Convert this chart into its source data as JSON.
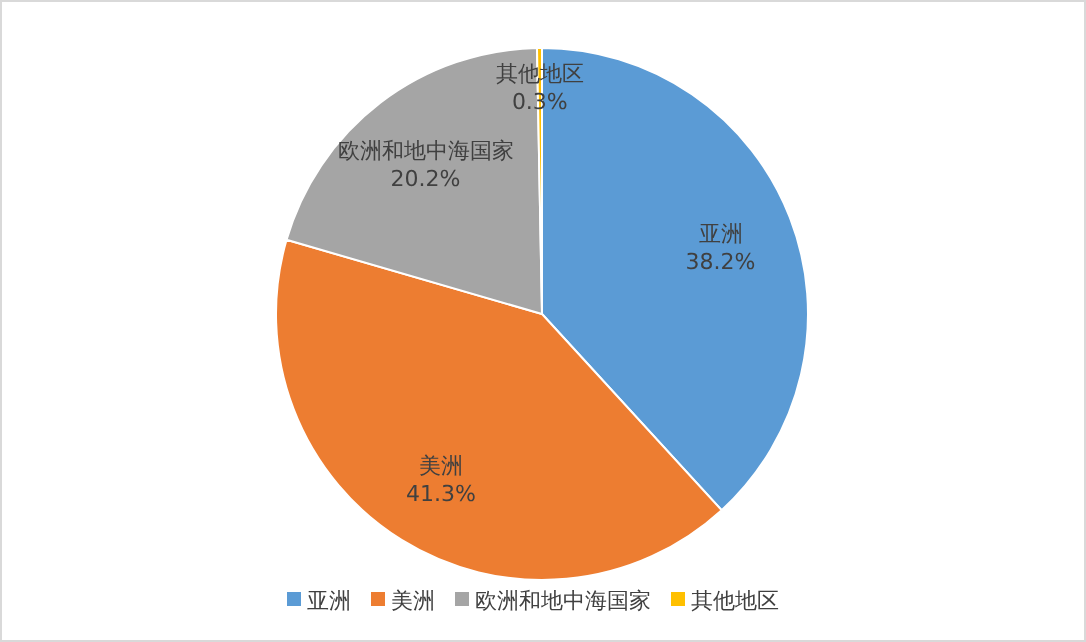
{
  "chart_data": {
    "type": "pie",
    "categories": [
      "亚洲",
      "美洲",
      "欧洲和地中海国家",
      "其他地区"
    ],
    "values": [
      38.2,
      41.3,
      20.2,
      0.3
    ],
    "value_labels": [
      "38.2%",
      "41.3%",
      "20.2%",
      "0.3%"
    ],
    "colors": [
      "#5b9bd5",
      "#ed7d31",
      "#a5a5a5",
      "#ffc000"
    ],
    "legend": "bottom"
  }
}
